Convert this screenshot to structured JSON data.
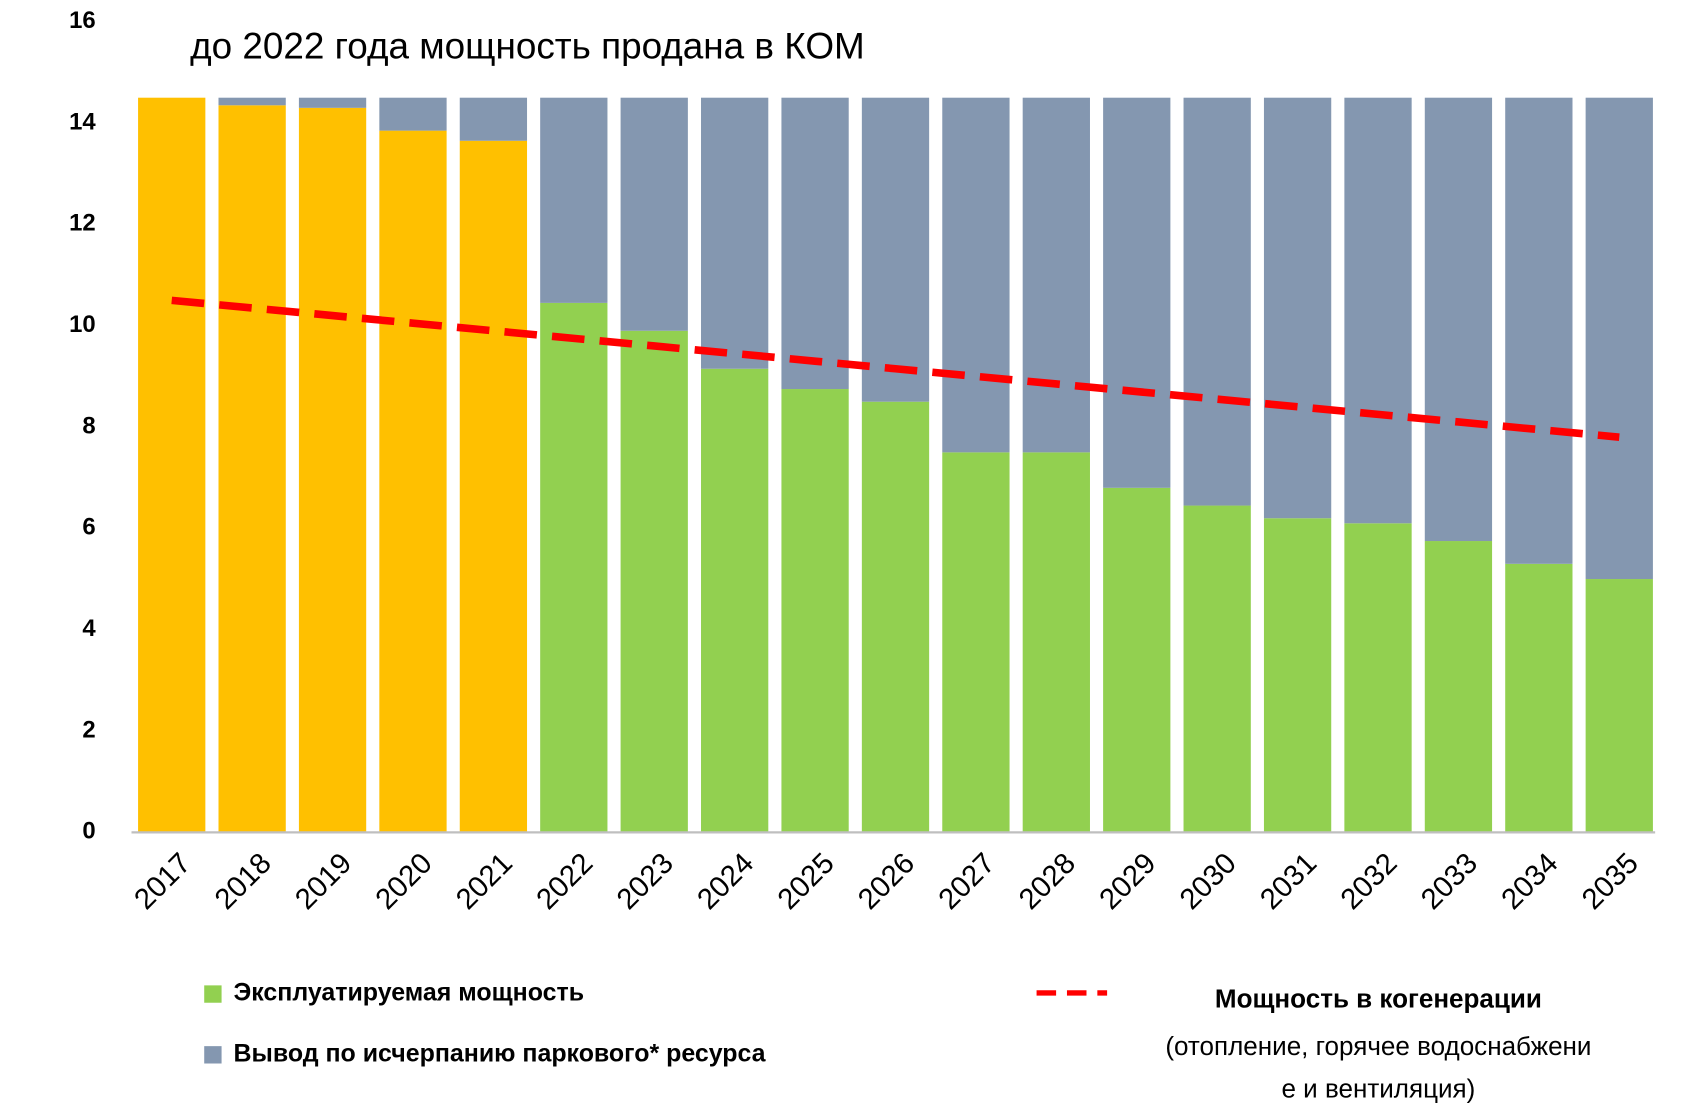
{
  "chart_data": {
    "type": "stacked_bar",
    "annotation": "до 2022 года мощность продана в КОМ",
    "categories": [
      "2017",
      "2018",
      "2019",
      "2020",
      "2021",
      "2022",
      "2023",
      "2024",
      "2025",
      "2026",
      "2027",
      "2028",
      "2029",
      "2030",
      "2031",
      "2032",
      "2033",
      "2034",
      "2035"
    ],
    "series": [
      {
        "color": "#ffc000",
        "values": [
          14.5,
          14.35,
          14.3,
          13.85,
          13.65,
          null,
          null,
          null,
          null,
          null,
          null,
          null,
          null,
          null,
          null,
          null,
          null,
          null,
          null
        ]
      },
      {
        "name": "Эксплуатируемая мощность",
        "color": "#92d050",
        "values": [
          null,
          null,
          null,
          null,
          null,
          10.45,
          9.9,
          9.15,
          8.75,
          8.5,
          7.5,
          7.5,
          6.8,
          6.45,
          6.2,
          6.1,
          5.75,
          5.3,
          5.0
        ]
      },
      {
        "name": "Вывод по исчерпанию паркового* ресурса",
        "color": "#8497b0",
        "values": [
          0,
          0.15,
          0.2,
          0.65,
          0.85,
          4.05,
          4.6,
          5.35,
          5.75,
          6.0,
          7.0,
          7.0,
          7.7,
          8.05,
          8.3,
          8.4,
          8.75,
          9.2,
          9.5
        ]
      },
      {
        "name": "Мощность в когенерации",
        "type": "line",
        "color": "#ff0000",
        "dashed": true,
        "values": [
          10.5,
          10.35,
          10.2,
          10.05,
          9.9,
          9.75,
          9.6,
          9.45,
          9.3,
          9.15,
          9.0,
          8.85,
          8.7,
          8.55,
          8.4,
          8.25,
          8.1,
          7.95,
          7.8
        ]
      }
    ],
    "line_note": [
      "(отопление, горячее водоснабжени",
      "е и вентиляция)"
    ],
    "ylim": [
      0,
      16
    ],
    "yticks": [
      0,
      2,
      4,
      6,
      8,
      10,
      12,
      14,
      16
    ],
    "grid": false
  }
}
